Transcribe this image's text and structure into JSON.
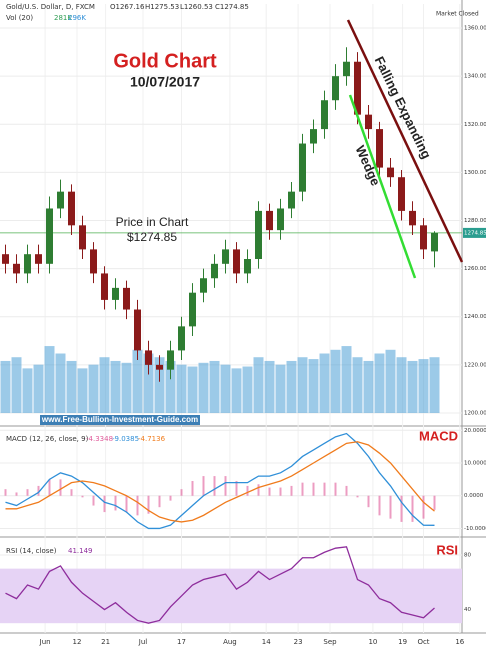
{
  "chart_data": [
    {
      "type": "candlestick",
      "title": "Gold Chart",
      "subtitle": "10/07/2017",
      "symbol": "Gold/U.S. Dollar, D, FXCM",
      "ohlc_labels": [
        "O1267.16",
        "H1275.53",
        "L1260.53",
        "C1274.85"
      ],
      "status": "Market Closed",
      "annotations": [
        "Price in Chart",
        "$1274.85",
        "Falling Expanding",
        "Wedge",
        "www.Free-Bullion-Investment-Guide.com"
      ],
      "price_level": 1274.85,
      "price_label": "1274.85",
      "x": [
        0,
        1,
        2,
        3,
        4,
        5,
        6,
        7,
        8,
        9,
        10,
        11,
        12,
        13,
        14,
        15,
        16,
        17,
        18,
        19,
        20,
        21,
        22,
        23,
        24,
        25,
        26,
        27,
        28,
        29,
        30,
        31,
        32,
        33,
        34,
        35,
        36,
        37,
        38,
        39
      ],
      "open": [
        1266,
        1262,
        1258,
        1266,
        1262,
        1285,
        1292,
        1278,
        1268,
        1258,
        1247,
        1252,
        1243,
        1226,
        1220,
        1218,
        1226,
        1236,
        1250,
        1256,
        1262,
        1268,
        1258,
        1264,
        1284,
        1276,
        1285,
        1292,
        1312,
        1318,
        1330,
        1340,
        1346,
        1324,
        1318,
        1302,
        1298,
        1284,
        1278,
        1267.16
      ],
      "high": [
        1270,
        1266,
        1270,
        1270,
        1290,
        1297,
        1295,
        1282,
        1271,
        1261,
        1256,
        1255,
        1247,
        1230,
        1224,
        1230,
        1240,
        1254,
        1260,
        1266,
        1272,
        1271,
        1268,
        1288,
        1287,
        1289,
        1296,
        1316,
        1322,
        1334,
        1345,
        1352,
        1350,
        1328,
        1321,
        1306,
        1301,
        1288,
        1281,
        1275.53
      ],
      "low": [
        1258,
        1254,
        1254,
        1258,
        1258,
        1281,
        1274,
        1264,
        1254,
        1243,
        1243,
        1239,
        1222,
        1216,
        1213,
        1214,
        1222,
        1232,
        1246,
        1252,
        1258,
        1254,
        1254,
        1260,
        1272,
        1272,
        1281,
        1288,
        1308,
        1314,
        1326,
        1336,
        1320,
        1314,
        1298,
        1294,
        1280,
        1274,
        1264,
        1260.53
      ],
      "close": [
        1262,
        1258,
        1266,
        1262,
        1285,
        1292,
        1278,
        1268,
        1258,
        1247,
        1252,
        1243,
        1226,
        1220,
        1218,
        1226,
        1236,
        1250,
        1256,
        1262,
        1268,
        1258,
        1264,
        1284,
        1276,
        1285,
        1292,
        1312,
        1318,
        1330,
        1340,
        1346,
        1324,
        1318,
        1302,
        1298,
        1284,
        1278,
        1268,
        1274.85
      ],
      "colors": {
        "up": "#2e7d32",
        "down": "#8b1a1a"
      },
      "xlim": [
        -0.5,
        41.5
      ],
      "xticks": [
        {
          "value": 3.6,
          "label": "Jun"
        },
        {
          "value": 6.5,
          "label": "12"
        },
        {
          "value": 9.1,
          "label": "21"
        },
        {
          "value": 12.5,
          "label": "Jul"
        },
        {
          "value": 16,
          "label": "17"
        },
        {
          "value": 20.4,
          "label": "Aug"
        },
        {
          "value": 23.7,
          "label": "14"
        },
        {
          "value": 26.6,
          "label": "23"
        },
        {
          "value": 29.5,
          "label": "Sep"
        },
        {
          "value": 33.4,
          "label": "10"
        },
        {
          "value": 36.1,
          "label": "19"
        },
        {
          "value": 38,
          "label": "Oct"
        },
        {
          "value": 41.3,
          "label": "16"
        }
      ],
      "ylim": [
        1195,
        1370
      ],
      "yticks": [
        {
          "value": 1200,
          "label": "1200.00"
        },
        {
          "value": 1220,
          "label": "1220.00"
        },
        {
          "value": 1240,
          "label": "1240.00"
        },
        {
          "value": 1260,
          "label": "1260.00"
        },
        {
          "value": 1280,
          "label": "1280.00"
        },
        {
          "value": 1300,
          "label": "1300.00"
        },
        {
          "value": 1320,
          "label": "1320.00"
        },
        {
          "value": 1340,
          "label": "1340.00"
        },
        {
          "value": 1360,
          "label": "1360.00"
        }
      ],
      "grid": true,
      "volume": {
        "name": "Vol (20)",
        "labels": [
          "281K",
          "296K"
        ],
        "color": "#4a9fd6",
        "values": [
          140,
          150,
          120,
          130,
          180,
          160,
          140,
          120,
          130,
          150,
          140,
          135,
          170,
          160,
          150,
          140,
          130,
          125,
          135,
          140,
          130,
          120,
          125,
          150,
          140,
          130,
          140,
          150,
          145,
          160,
          170,
          180,
          150,
          140,
          160,
          170,
          150,
          140,
          145,
          150
        ],
        "ylim": [
          0,
          1100
        ]
      }
    },
    {
      "type": "line",
      "title": "MACD",
      "name": "MACD (12, 26, close, 9)",
      "value_labels": [
        "-4.3348",
        "-9.0385",
        "-4.7136"
      ],
      "series": [
        {
          "color": "#e05a9a",
          "style": "histogram",
          "values": [
            2,
            1,
            2,
            3,
            5,
            5,
            2,
            -0.5,
            -3,
            -5,
            -4.5,
            -5,
            -6,
            -5.5,
            -3.5,
            -1.5,
            2,
            4.5,
            6,
            6,
            6,
            4.5,
            3,
            3.5,
            2.5,
            2.5,
            3,
            4,
            4,
            4,
            4,
            3,
            -0.5,
            -3.5,
            -6,
            -7,
            -8,
            -8,
            -7,
            -4.3348
          ]
        },
        {
          "color": "#2f8fd8",
          "style": "line",
          "values": [
            -2,
            -3,
            -1,
            1,
            5,
            7,
            6,
            4,
            1,
            -2,
            -3,
            -5,
            -8,
            -10,
            -10,
            -9,
            -6,
            -3,
            0,
            2,
            4,
            4,
            4,
            6,
            6,
            7,
            9,
            12,
            14,
            16,
            18,
            19,
            16,
            12,
            7,
            3,
            -2,
            -6,
            -9,
            -9.0385
          ]
        },
        {
          "color": "#f07b1c",
          "style": "line",
          "values": [
            -4,
            -4,
            -3,
            -2,
            0,
            2,
            4,
            4.5,
            4,
            3,
            1.5,
            0,
            -2,
            -4.5,
            -6.5,
            -7.5,
            -8,
            -7.5,
            -6,
            -4,
            -2,
            -0.5,
            1,
            2.5,
            3.5,
            4.5,
            6,
            8,
            10,
            12,
            14,
            16,
            16.5,
            15.5,
            13,
            10,
            6,
            2,
            -2,
            -4.7136
          ]
        }
      ],
      "ylim": [
        -12,
        21
      ],
      "yticks": [
        {
          "value": 20,
          "label": "20.0000"
        },
        {
          "value": 10,
          "label": "10.0000"
        },
        {
          "value": 0,
          "label": "0.0000"
        },
        {
          "value": -10,
          "label": "-10.0000"
        }
      ]
    },
    {
      "type": "line",
      "title": "RSI",
      "name": "RSI (14, close)",
      "value_label": "41.149",
      "band": [
        30,
        70
      ],
      "band_color": "#e6d3f5",
      "series": [
        {
          "color": "#8e2d9c",
          "style": "line",
          "values": [
            52,
            48,
            58,
            55,
            68,
            72,
            60,
            52,
            46,
            40,
            45,
            38,
            32,
            30,
            32,
            42,
            50,
            58,
            62,
            64,
            66,
            55,
            60,
            68,
            62,
            66,
            70,
            78,
            78,
            82,
            85,
            86,
            62,
            58,
            48,
            45,
            38,
            36,
            34,
            41.149
          ]
        }
      ],
      "ylim": [
        25,
        91
      ],
      "yticks": [
        80,
        40
      ]
    }
  ]
}
